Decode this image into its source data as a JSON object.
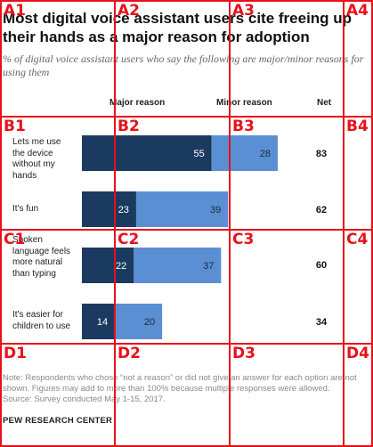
{
  "title": "Most digital voice assistant users cite freeing up their hands as a major reason for adoption",
  "subtitle": "% of digital voice assistant users who say the following are major/minor reasons for using them",
  "columns": {
    "major": "Major reason",
    "minor": "Minor reason",
    "net": "Net"
  },
  "note": "Note: Respondents who chose “not a reason” or did not give an answer for each option are not shown. Figures may add to more than 100% because multiple responses were allowed.",
  "source": "Source: Survey conducted May 1-15, 2017.",
  "brand": "PEW RESEARCH CENTER",
  "colors": {
    "major": "#1b3a5f",
    "minor": "#5b8fd3",
    "grid": "#e8101a"
  },
  "grid": {
    "labels": [
      "A1",
      "A2",
      "A3",
      "A4",
      "B1",
      "B2",
      "B3",
      "B4",
      "C1",
      "C2",
      "C3",
      "C4",
      "D1",
      "D2",
      "D3",
      "D4"
    ]
  },
  "chart_data": {
    "type": "bar",
    "orientation": "horizontal",
    "stacked": true,
    "categories": [
      "Lets me use the device without my hands",
      "It's fun",
      "Spoken language feels more natural than typing",
      "It's easier for children to use"
    ],
    "series": [
      {
        "name": "Major reason",
        "values": [
          55,
          23,
          22,
          14
        ]
      },
      {
        "name": "Minor reason",
        "values": [
          28,
          39,
          37,
          20
        ]
      }
    ],
    "net": [
      83,
      62,
      60,
      34
    ]
  }
}
